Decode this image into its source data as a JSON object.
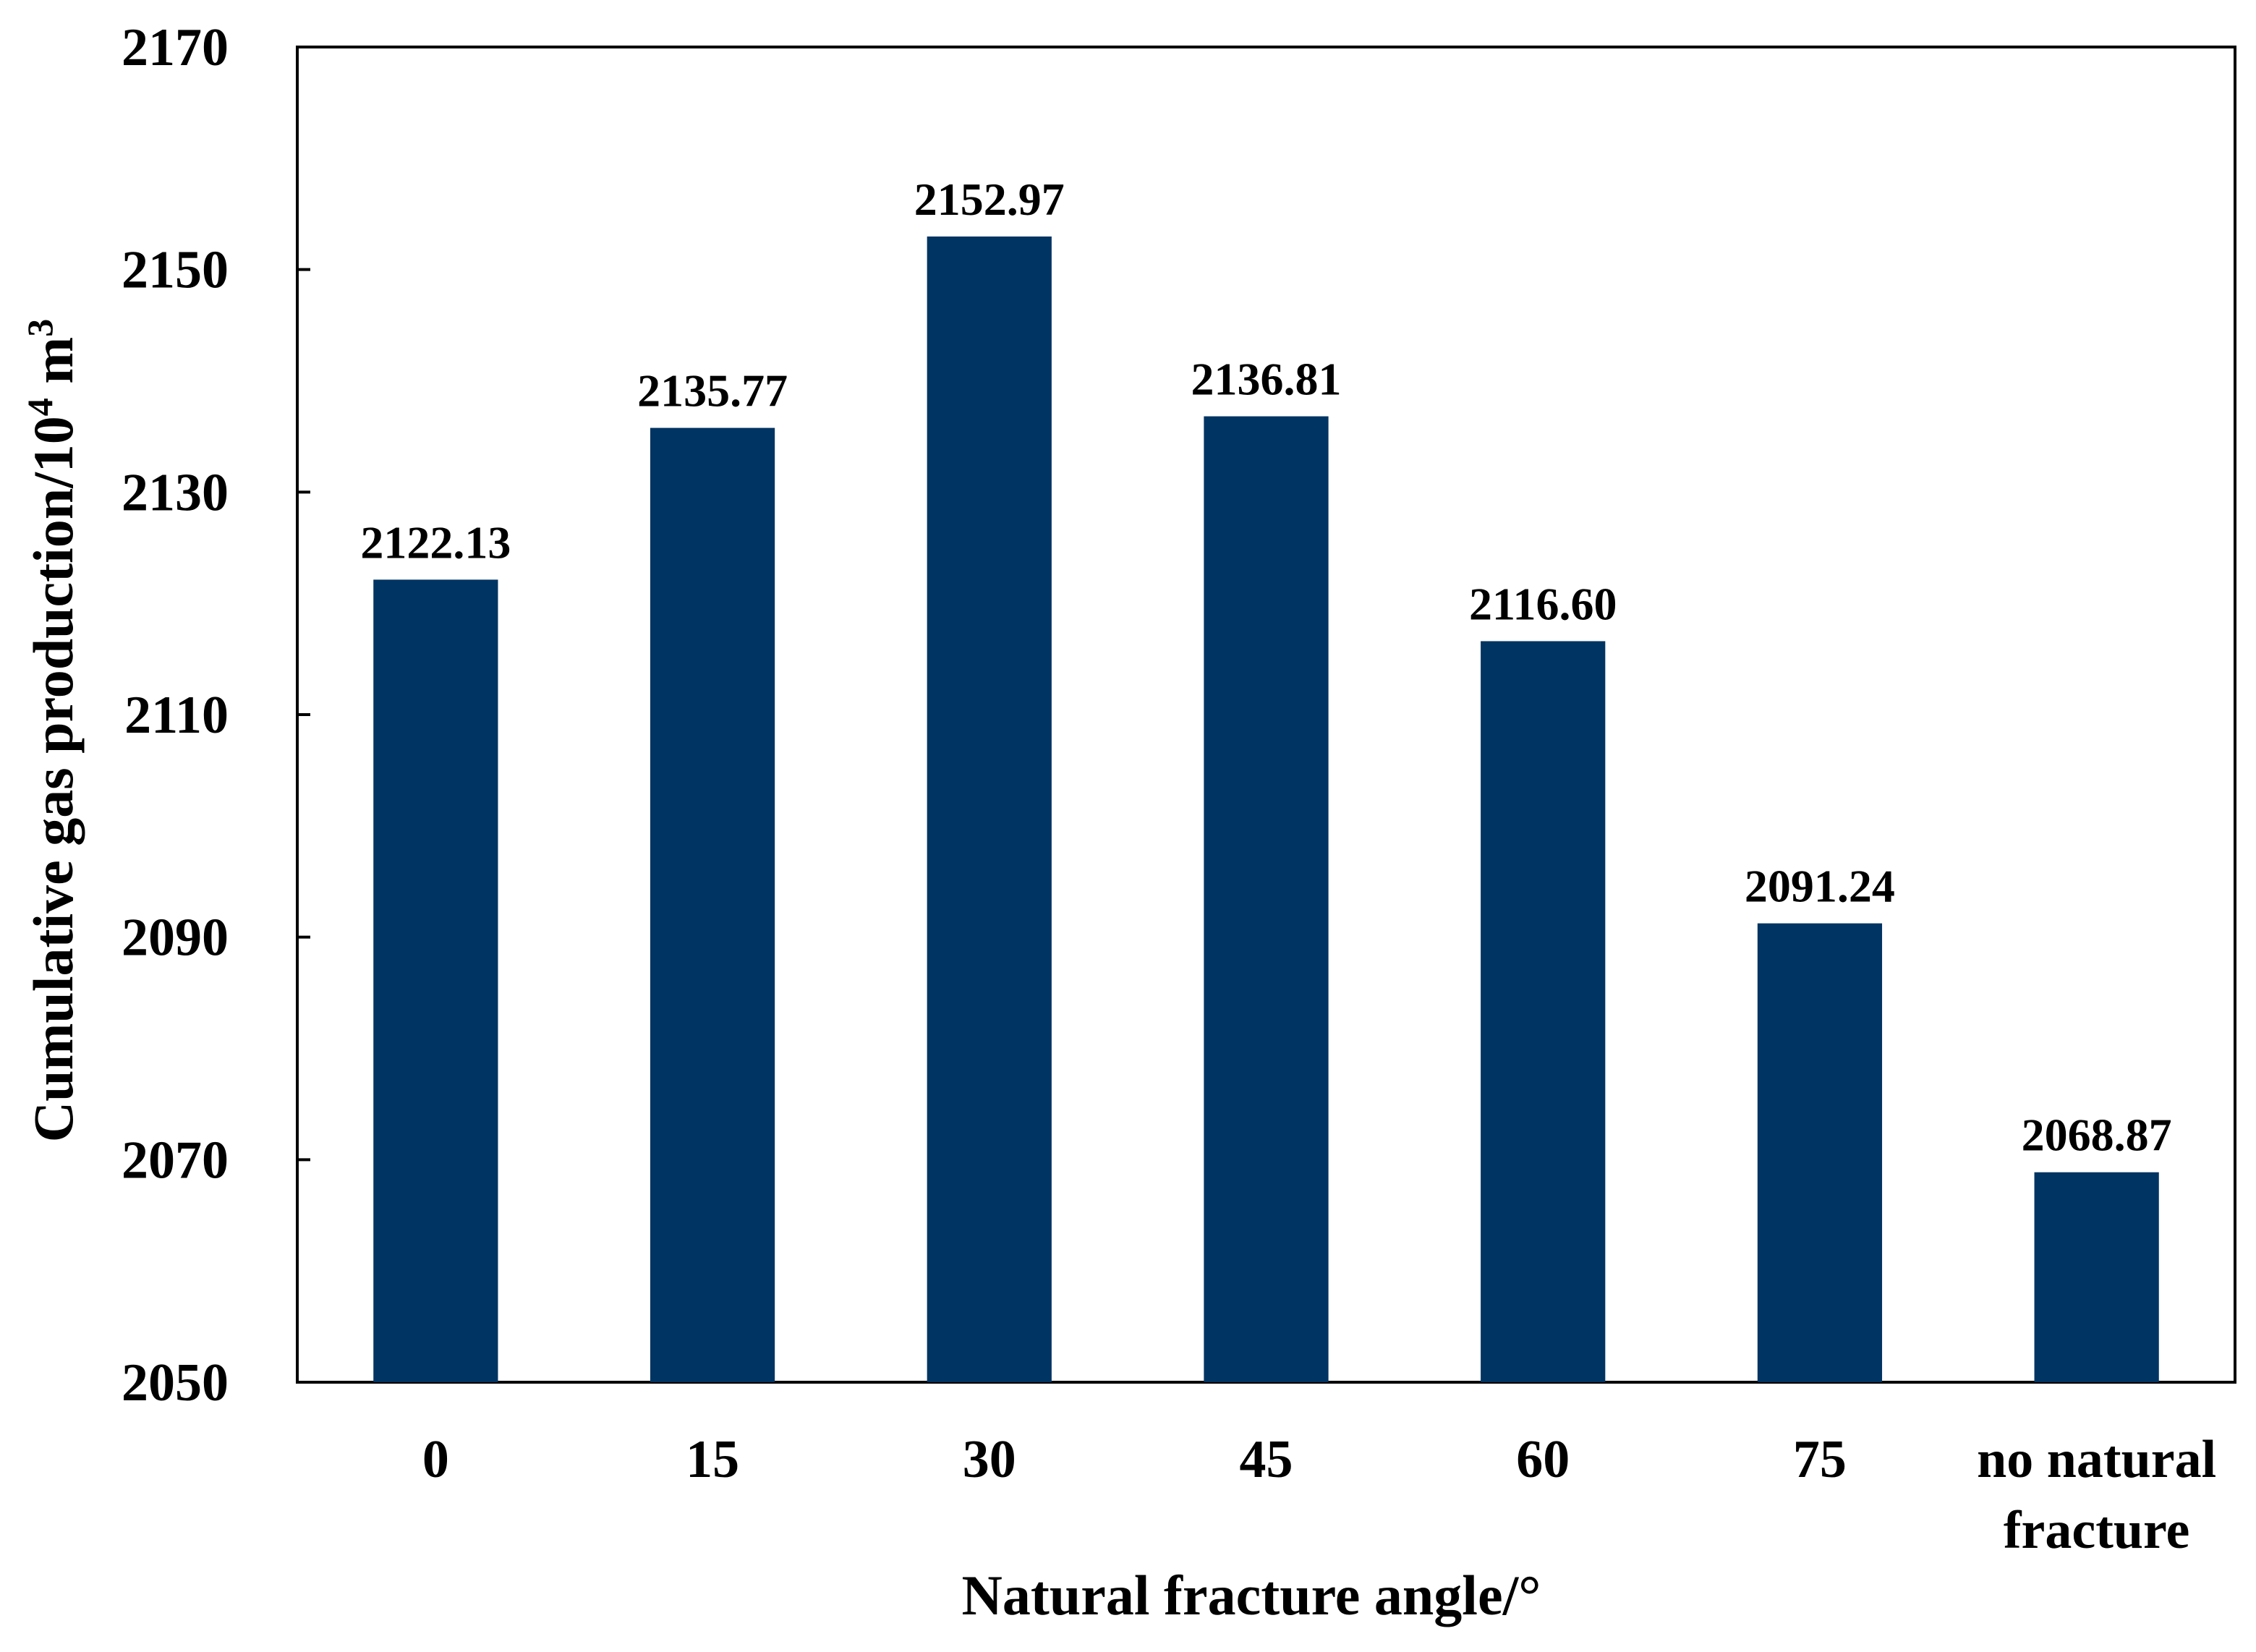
{
  "chart_data": {
    "type": "bar",
    "title": "",
    "xlabel": "Natural fracture angle/°",
    "ylabel": {
      "prefix": "Cumulative gas production/10",
      "sup1": "4",
      "unit": " m",
      "sup2": "3"
    },
    "categories": [
      "0",
      "15",
      "30",
      "45",
      "60",
      "75",
      "no natural fracture"
    ],
    "category_lines": [
      [
        "0"
      ],
      [
        "15"
      ],
      [
        "30"
      ],
      [
        "45"
      ],
      [
        "60"
      ],
      [
        "75"
      ],
      [
        "no natural",
        "fracture"
      ]
    ],
    "values": [
      2122.13,
      2135.77,
      2152.97,
      2136.81,
      2116.6,
      2091.24,
      2068.87
    ],
    "value_labels": [
      "2122.13",
      "2135.77",
      "2152.97",
      "2136.81",
      "2116.60",
      "2091.24",
      "2068.87"
    ],
    "ylim": [
      2050,
      2170
    ],
    "yticks": [
      2050,
      2070,
      2090,
      2110,
      2130,
      2150,
      2170
    ],
    "grid": false,
    "legend": "none",
    "colors": {
      "bar": "#003462",
      "axis": "#000000"
    }
  }
}
